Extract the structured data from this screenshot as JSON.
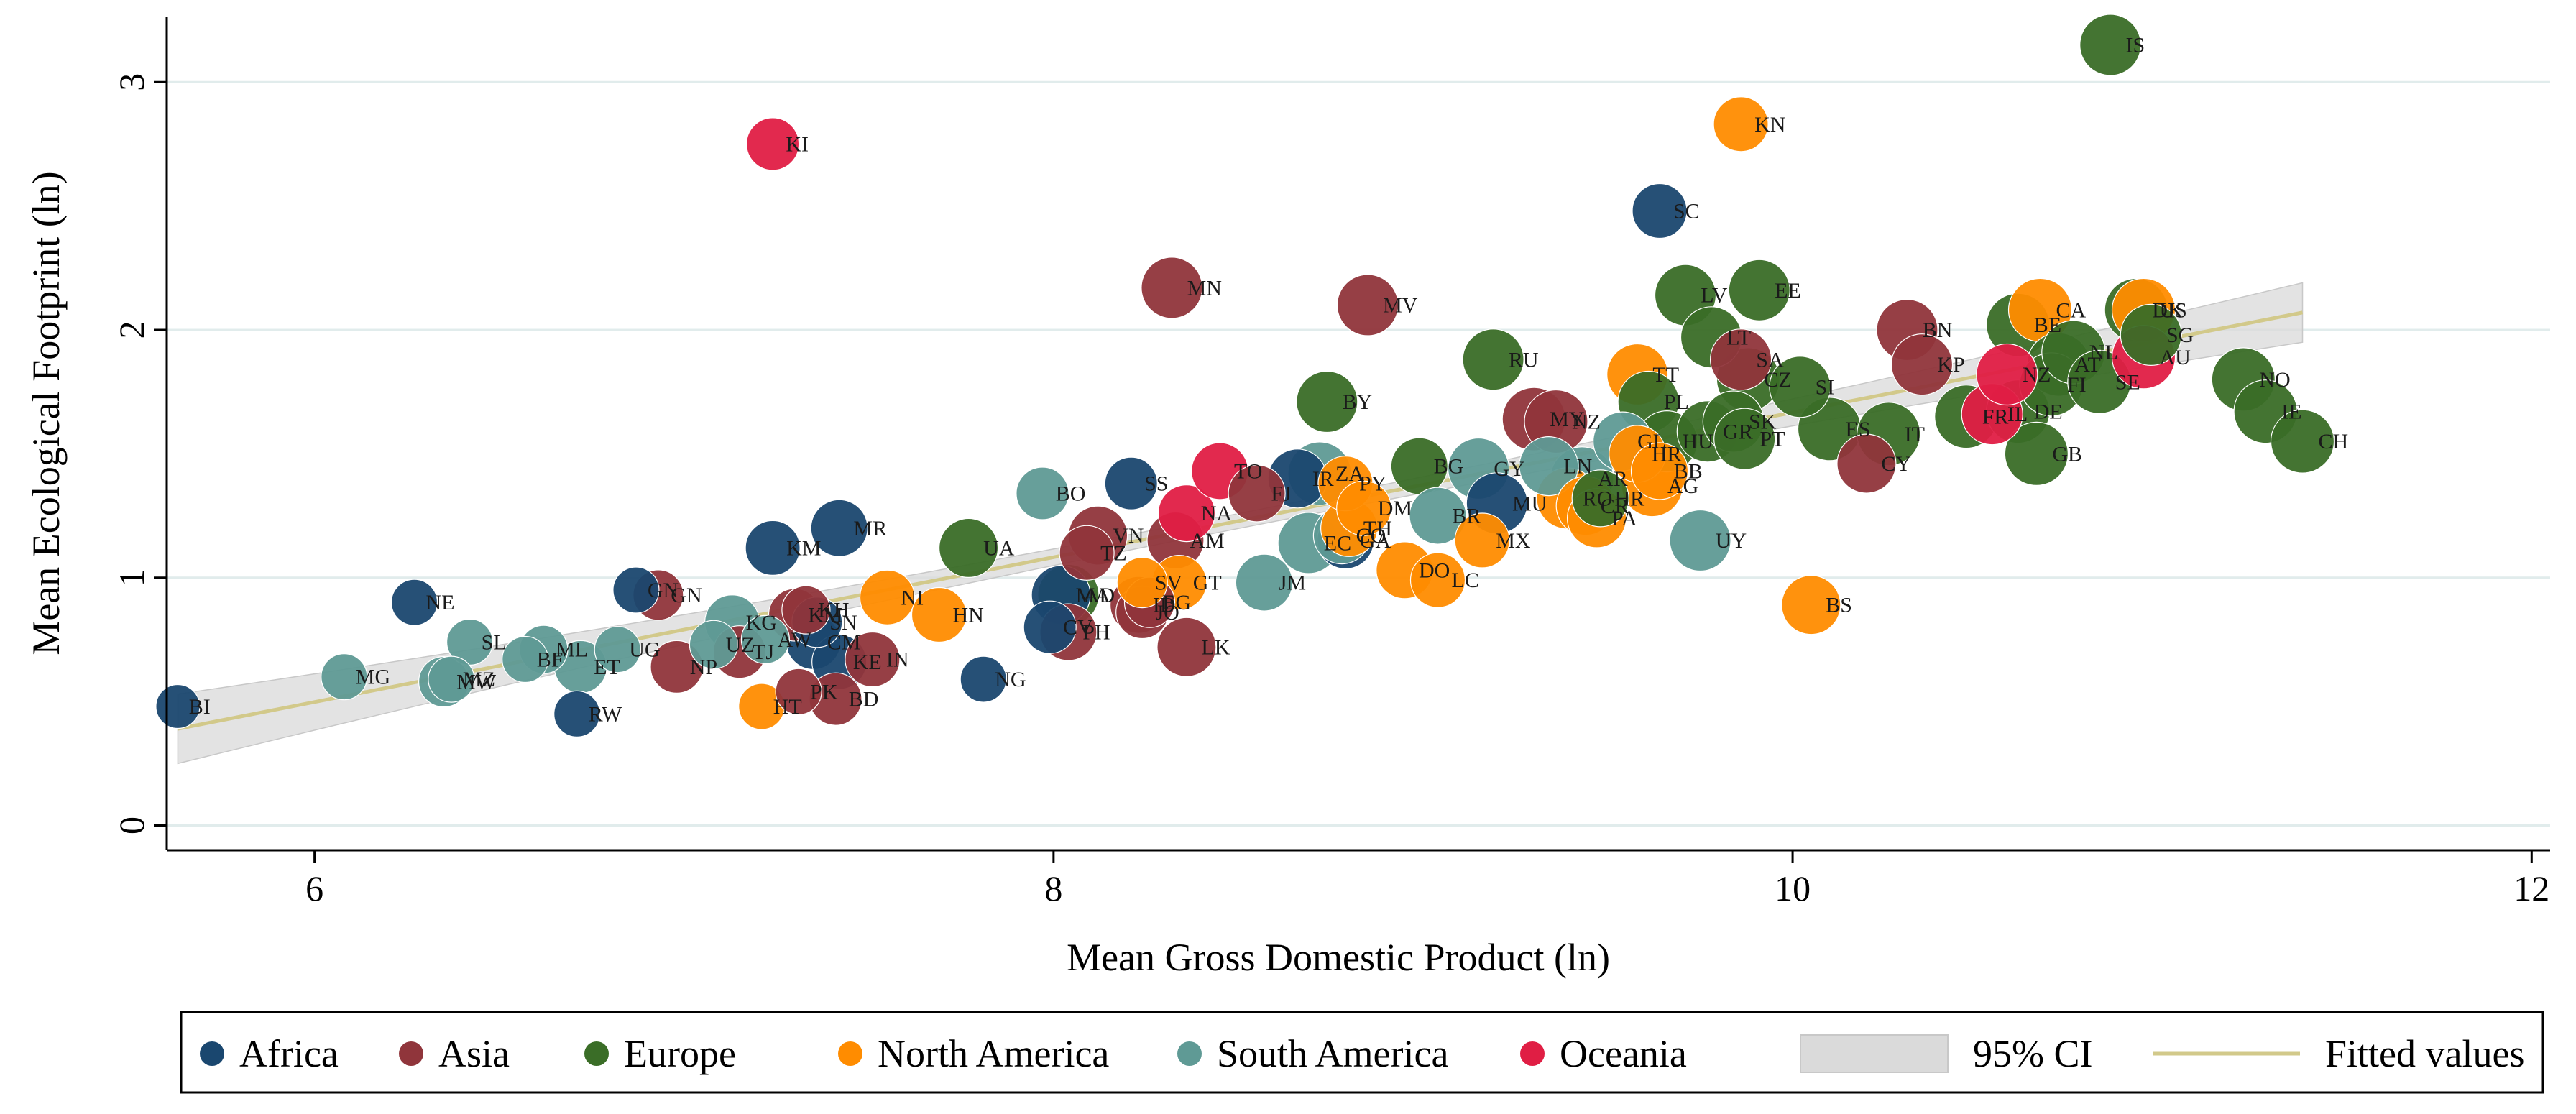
{
  "chart_data": {
    "type": "scatter",
    "xlabel": "Mean Gross Domestic Product (ln)",
    "ylabel": "Mean Ecological Footprint (ln)",
    "xlim": [
      5.6,
      12.05
    ],
    "ylim": [
      -0.1,
      3.25
    ],
    "xticks": [
      6,
      8,
      10,
      12
    ],
    "yticks": [
      0,
      1,
      2,
      3
    ],
    "grid": true,
    "legend_position": "bottom",
    "colors": {
      "Africa": "#1a476f",
      "Asia": "#90353b",
      "Europe": "#3a6d27",
      "North America": "#ff8c00",
      "South America": "#5f9a95",
      "Oceania": "#e01e44",
      "fit_line": "#d2c98a",
      "ci_band": "#dadada",
      "grid": "#e1ecec"
    },
    "legend": [
      {
        "key": "Africa",
        "label": "Africa"
      },
      {
        "key": "Asia",
        "label": "Asia"
      },
      {
        "key": "Europe",
        "label": "Europe"
      },
      {
        "key": "North America",
        "label": "North America"
      },
      {
        "key": "South America",
        "label": "South America"
      },
      {
        "key": "Oceania",
        "label": "Oceania"
      },
      {
        "key": "ci",
        "label": "95% CI"
      },
      {
        "key": "fit",
        "label": "Fitted values"
      }
    ],
    "fit": {
      "x": [
        5.63,
        11.38
      ],
      "y": [
        0.39,
        2.07
      ],
      "ci_halfwidth_ends": [
        0.14,
        0.12
      ],
      "ci_halfwidth_mid": 0.03
    },
    "points": [
      {
        "label": "BI",
        "region": "Africa",
        "x": 5.63,
        "y": 0.48,
        "size": 0.55
      },
      {
        "label": "NE",
        "region": "Africa",
        "x": 6.27,
        "y": 0.9,
        "size": 0.6
      },
      {
        "label": "MG",
        "region": "South America",
        "x": 6.08,
        "y": 0.6,
        "size": 0.6
      },
      {
        "label": "SL",
        "region": "South America",
        "x": 6.42,
        "y": 0.74,
        "size": 0.6
      },
      {
        "label": "MW",
        "region": "South America",
        "x": 6.35,
        "y": 0.58,
        "size": 0.7
      },
      {
        "label": "MZ",
        "region": "South America",
        "x": 6.37,
        "y": 0.59,
        "size": 0.6
      },
      {
        "label": "ML",
        "region": "South America",
        "x": 6.62,
        "y": 0.71,
        "size": 0.65
      },
      {
        "label": "BF",
        "region": "South America",
        "x": 6.57,
        "y": 0.67,
        "size": 0.6
      },
      {
        "label": "ET",
        "region": "South America",
        "x": 6.72,
        "y": 0.64,
        "size": 0.75
      },
      {
        "label": "UG",
        "region": "South America",
        "x": 6.82,
        "y": 0.71,
        "size": 0.6
      },
      {
        "label": "RW",
        "region": "Africa",
        "x": 6.71,
        "y": 0.45,
        "size": 0.6
      },
      {
        "label": "GN",
        "region": "Africa",
        "x": 6.87,
        "y": 0.95,
        "size": 0.6
      },
      {
        "label": "GN",
        "region": "Asia",
        "x": 6.93,
        "y": 0.93,
        "size": 0.7
      },
      {
        "label": "NP",
        "region": "Asia",
        "x": 6.98,
        "y": 0.64,
        "size": 0.75
      },
      {
        "label": "KG",
        "region": "South America",
        "x": 7.13,
        "y": 0.82,
        "size": 0.8
      },
      {
        "label": "UZ",
        "region": "South America",
        "x": 7.08,
        "y": 0.73,
        "size": 0.65
      },
      {
        "label": "TJ",
        "region": "Asia",
        "x": 7.15,
        "y": 0.7,
        "size": 0.75
      },
      {
        "label": "AW",
        "region": "South America",
        "x": 7.22,
        "y": 0.75,
        "size": 0.65
      },
      {
        "label": "KI",
        "region": "Oceania",
        "x": 7.24,
        "y": 2.75,
        "size": 0.75
      },
      {
        "label": "KM",
        "region": "Africa",
        "x": 7.24,
        "y": 1.12,
        "size": 0.8
      },
      {
        "label": "KM",
        "region": "Asia",
        "x": 7.3,
        "y": 0.85,
        "size": 0.75
      },
      {
        "label": "KH",
        "region": "Asia",
        "x": 7.33,
        "y": 0.87,
        "size": 0.65
      },
      {
        "label": "SN",
        "region": "Africa",
        "x": 7.36,
        "y": 0.82,
        "size": 0.7
      },
      {
        "label": "CM",
        "region": "Africa",
        "x": 7.35,
        "y": 0.74,
        "size": 0.8
      },
      {
        "label": "HT",
        "region": "North America",
        "x": 7.21,
        "y": 0.48,
        "size": 0.6
      },
      {
        "label": "PK",
        "region": "Asia",
        "x": 7.31,
        "y": 0.54,
        "size": 0.6
      },
      {
        "label": "BD",
        "region": "Asia",
        "x": 7.41,
        "y": 0.51,
        "size": 0.75
      },
      {
        "label": "KE",
        "region": "Africa",
        "x": 7.42,
        "y": 0.66,
        "size": 0.8
      },
      {
        "label": "IN",
        "region": "Asia",
        "x": 7.51,
        "y": 0.67,
        "size": 0.8
      },
      {
        "label": "MR",
        "region": "Africa",
        "x": 7.42,
        "y": 1.2,
        "size": 0.85
      },
      {
        "label": "NI",
        "region": "North America",
        "x": 7.55,
        "y": 0.92,
        "size": 0.8
      },
      {
        "label": "HN",
        "region": "North America",
        "x": 7.69,
        "y": 0.85,
        "size": 0.8
      },
      {
        "label": "NG",
        "region": "Africa",
        "x": 7.81,
        "y": 0.59,
        "size": 0.6
      },
      {
        "label": "UA",
        "region": "Europe",
        "x": 7.77,
        "y": 1.12,
        "size": 0.9
      },
      {
        "label": "BO",
        "region": "South America",
        "x": 7.97,
        "y": 1.34,
        "size": 0.75
      },
      {
        "label": "CV",
        "region": "Africa",
        "x": 7.99,
        "y": 0.8,
        "size": 0.75
      },
      {
        "label": "MA",
        "region": "Africa",
        "x": 8.02,
        "y": 0.93,
        "size": 0.9
      },
      {
        "label": "PH",
        "region": "Asia",
        "x": 8.04,
        "y": 0.78,
        "size": 0.85
      },
      {
        "label": "AD",
        "region": "Europe",
        "x": 8.04,
        "y": 0.93,
        "size": 0.95
      },
      {
        "label": "VN",
        "region": "Asia",
        "x": 8.12,
        "y": 1.17,
        "size": 0.9
      },
      {
        "label": "TZ",
        "region": "Asia",
        "x": 8.09,
        "y": 1.1,
        "size": 0.8
      },
      {
        "label": "ID",
        "region": "Asia",
        "x": 8.23,
        "y": 0.89,
        "size": 0.85
      },
      {
        "label": "JO",
        "region": "Asia",
        "x": 8.24,
        "y": 0.86,
        "size": 0.75
      },
      {
        "label": "EG",
        "region": "Asia",
        "x": 8.26,
        "y": 0.9,
        "size": 0.7
      },
      {
        "label": "SV",
        "region": "North America",
        "x": 8.24,
        "y": 0.98,
        "size": 0.7
      },
      {
        "label": "GT",
        "region": "North America",
        "x": 8.34,
        "y": 0.98,
        "size": 0.8
      },
      {
        "label": "SS",
        "region": "Africa",
        "x": 8.21,
        "y": 1.38,
        "size": 0.75
      },
      {
        "label": "MN",
        "region": "Asia",
        "x": 8.32,
        "y": 2.17,
        "size": 0.95
      },
      {
        "label": "LK",
        "region": "Asia",
        "x": 8.36,
        "y": 0.72,
        "size": 0.9
      },
      {
        "label": "AM",
        "region": "Asia",
        "x": 8.33,
        "y": 1.15,
        "size": 0.85
      },
      {
        "label": "NA",
        "region": "Oceania",
        "x": 8.36,
        "y": 1.26,
        "size": 0.85
      },
      {
        "label": "TO",
        "region": "Oceania",
        "x": 8.45,
        "y": 1.43,
        "size": 0.85
      },
      {
        "label": "FJ",
        "region": "Asia",
        "x": 8.55,
        "y": 1.34,
        "size": 0.85
      },
      {
        "label": "JM",
        "region": "South America",
        "x": 8.57,
        "y": 0.98,
        "size": 0.85
      },
      {
        "label": "IR",
        "region": "Africa",
        "x": 8.66,
        "y": 1.4,
        "size": 0.9
      },
      {
        "label": "EC",
        "region": "South America",
        "x": 8.69,
        "y": 1.14,
        "size": 0.95
      },
      {
        "label": "ZA",
        "region": "South America",
        "x": 8.72,
        "y": 1.42,
        "size": 1.0
      },
      {
        "label": "BY",
        "region": "Europe",
        "x": 8.74,
        "y": 1.71,
        "size": 0.95
      },
      {
        "label": "GA",
        "region": "Africa",
        "x": 8.79,
        "y": 1.15,
        "size": 0.85
      },
      {
        "label": "CO",
        "region": "South America",
        "x": 8.78,
        "y": 1.17,
        "size": 0.85
      },
      {
        "label": "PY",
        "region": "North America",
        "x": 8.79,
        "y": 1.38,
        "size": 0.8
      },
      {
        "label": "TH",
        "region": "North America",
        "x": 8.8,
        "y": 1.2,
        "size": 0.85
      },
      {
        "label": "DM",
        "region": "North America",
        "x": 8.84,
        "y": 1.28,
        "size": 0.8
      },
      {
        "label": "MV",
        "region": "Asia",
        "x": 8.85,
        "y": 2.1,
        "size": 0.95
      },
      {
        "label": "DO",
        "region": "North America",
        "x": 8.95,
        "y": 1.03,
        "size": 0.85
      },
      {
        "label": "LC",
        "region": "North America",
        "x": 9.04,
        "y": 0.99,
        "size": 0.8
      },
      {
        "label": "BG",
        "region": "Europe",
        "x": 8.99,
        "y": 1.45,
        "size": 0.85
      },
      {
        "label": "BR",
        "region": "South America",
        "x": 9.04,
        "y": 1.25,
        "size": 0.85
      },
      {
        "label": "GY",
        "region": "South America",
        "x": 9.15,
        "y": 1.44,
        "size": 0.95
      },
      {
        "label": "MX",
        "region": "North America",
        "x": 9.16,
        "y": 1.15,
        "size": 0.8
      },
      {
        "label": "MU",
        "region": "Africa",
        "x": 9.2,
        "y": 1.3,
        "size": 0.95
      },
      {
        "label": "RU",
        "region": "Europe",
        "x": 9.19,
        "y": 1.88,
        "size": 0.95
      },
      {
        "label": "MY",
        "region": "Asia",
        "x": 9.3,
        "y": 1.64,
        "size": 1.0
      },
      {
        "label": "NZ",
        "region": "Asia",
        "x": 9.36,
        "y": 1.63,
        "size": 1.0
      },
      {
        "label": "LN",
        "region": "South America",
        "x": 9.34,
        "y": 1.45,
        "size": 0.9
      },
      {
        "label": "AR",
        "region": "South America",
        "x": 9.43,
        "y": 1.4,
        "size": 1.0
      },
      {
        "label": "RO",
        "region": "North America",
        "x": 9.39,
        "y": 1.32,
        "size": 0.95
      },
      {
        "label": "CR",
        "region": "North America",
        "x": 9.44,
        "y": 1.29,
        "size": 0.9
      },
      {
        "label": "PA",
        "region": "North America",
        "x": 9.47,
        "y": 1.24,
        "size": 0.9
      },
      {
        "label": "HR",
        "region": "Europe",
        "x": 9.48,
        "y": 1.32,
        "size": 0.85
      },
      {
        "label": "UY",
        "region": "South America",
        "x": 9.75,
        "y": 1.15,
        "size": 0.95
      },
      {
        "label": "TT",
        "region": "North America",
        "x": 9.58,
        "y": 1.82,
        "size": 0.95
      },
      {
        "label": "PL",
        "region": "Europe",
        "x": 9.61,
        "y": 1.71,
        "size": 0.95
      },
      {
        "label": "GL",
        "region": "South America",
        "x": 9.54,
        "y": 1.55,
        "size": 0.9
      },
      {
        "label": "HR",
        "region": "North America",
        "x": 9.58,
        "y": 1.5,
        "size": 0.85
      },
      {
        "label": "AG",
        "region": "North America",
        "x": 9.62,
        "y": 1.37,
        "size": 0.95
      },
      {
        "label": "BB",
        "region": "North America",
        "x": 9.64,
        "y": 1.43,
        "size": 0.85
      },
      {
        "label": "HU",
        "region": "Europe",
        "x": 9.66,
        "y": 1.55,
        "size": 0.95
      },
      {
        "label": "SC",
        "region": "Africa",
        "x": 9.64,
        "y": 2.48,
        "size": 0.8
      },
      {
        "label": "LV",
        "region": "Europe",
        "x": 9.71,
        "y": 2.14,
        "size": 0.95
      },
      {
        "label": "LT",
        "region": "Europe",
        "x": 9.78,
        "y": 1.97,
        "size": 0.95
      },
      {
        "label": "GR",
        "region": "Europe",
        "x": 9.77,
        "y": 1.59,
        "size": 0.95
      },
      {
        "label": "SK",
        "region": "Europe",
        "x": 9.84,
        "y": 1.63,
        "size": 0.95
      },
      {
        "label": "PT",
        "region": "Europe",
        "x": 9.87,
        "y": 1.56,
        "size": 0.95
      },
      {
        "label": "SA",
        "region": "Asia",
        "x": 9.86,
        "y": 1.88,
        "size": 0.95
      },
      {
        "label": "CZ",
        "region": "Europe",
        "x": 9.88,
        "y": 1.8,
        "size": 1.0
      },
      {
        "label": "KN",
        "region": "North America",
        "x": 9.86,
        "y": 2.83,
        "size": 0.8
      },
      {
        "label": "EE",
        "region": "Europe",
        "x": 9.91,
        "y": 2.16,
        "size": 0.95
      },
      {
        "label": "SI",
        "region": "Europe",
        "x": 10.02,
        "y": 1.77,
        "size": 0.95
      },
      {
        "label": "ES",
        "region": "Europe",
        "x": 10.1,
        "y": 1.6,
        "size": 1.0
      },
      {
        "label": "BS",
        "region": "North America",
        "x": 10.05,
        "y": 0.89,
        "size": 0.9
      },
      {
        "label": "CY",
        "region": "Asia",
        "x": 10.2,
        "y": 1.46,
        "size": 0.9
      },
      {
        "label": "IT",
        "region": "Europe",
        "x": 10.26,
        "y": 1.58,
        "size": 1.0
      },
      {
        "label": "BN",
        "region": "Asia",
        "x": 10.31,
        "y": 2.0,
        "size": 0.95
      },
      {
        "label": "KP",
        "region": "Asia",
        "x": 10.35,
        "y": 1.86,
        "size": 0.95
      },
      {
        "label": "FR",
        "region": "Europe",
        "x": 10.47,
        "y": 1.65,
        "size": 1.0
      },
      {
        "label": "IL",
        "region": "Oceania",
        "x": 10.54,
        "y": 1.66,
        "size": 0.95
      },
      {
        "label": "NZ",
        "region": "Oceania",
        "x": 10.58,
        "y": 1.82,
        "size": 0.95
      },
      {
        "label": "DE",
        "region": "Europe",
        "x": 10.61,
        "y": 1.67,
        "size": 1.0
      },
      {
        "label": "GB",
        "region": "Europe",
        "x": 10.66,
        "y": 1.5,
        "size": 1.0
      },
      {
        "label": "BE",
        "region": "Europe",
        "x": 10.61,
        "y": 2.02,
        "size": 1.0
      },
      {
        "label": "CA",
        "region": "North America",
        "x": 10.67,
        "y": 2.08,
        "size": 1.0
      },
      {
        "label": "AT",
        "region": "Europe",
        "x": 10.72,
        "y": 1.86,
        "size": 1.0
      },
      {
        "label": "FI",
        "region": "Europe",
        "x": 10.7,
        "y": 1.78,
        "size": 1.0
      },
      {
        "label": "NL",
        "region": "Europe",
        "x": 10.76,
        "y": 1.91,
        "size": 1.0
      },
      {
        "label": "SE",
        "region": "Europe",
        "x": 10.83,
        "y": 1.79,
        "size": 1.0
      },
      {
        "label": "IS",
        "region": "Europe",
        "x": 10.86,
        "y": 3.15,
        "size": 0.95
      },
      {
        "label": "DK",
        "region": "Europe",
        "x": 10.93,
        "y": 2.08,
        "size": 1.0
      },
      {
        "label": "US",
        "region": "North America",
        "x": 10.95,
        "y": 2.08,
        "size": 1.0
      },
      {
        "label": "SG",
        "region": "Europe",
        "x": 10.97,
        "y": 1.98,
        "size": 0.95
      },
      {
        "label": "AU",
        "region": "Oceania",
        "x": 10.95,
        "y": 1.89,
        "size": 1.0
      },
      {
        "label": "NO",
        "region": "Europe",
        "x": 11.22,
        "y": 1.8,
        "size": 1.0
      },
      {
        "label": "IE",
        "region": "Europe",
        "x": 11.28,
        "y": 1.67,
        "size": 1.0
      },
      {
        "label": "CH",
        "region": "Europe",
        "x": 11.38,
        "y": 1.55,
        "size": 1.0
      }
    ]
  }
}
